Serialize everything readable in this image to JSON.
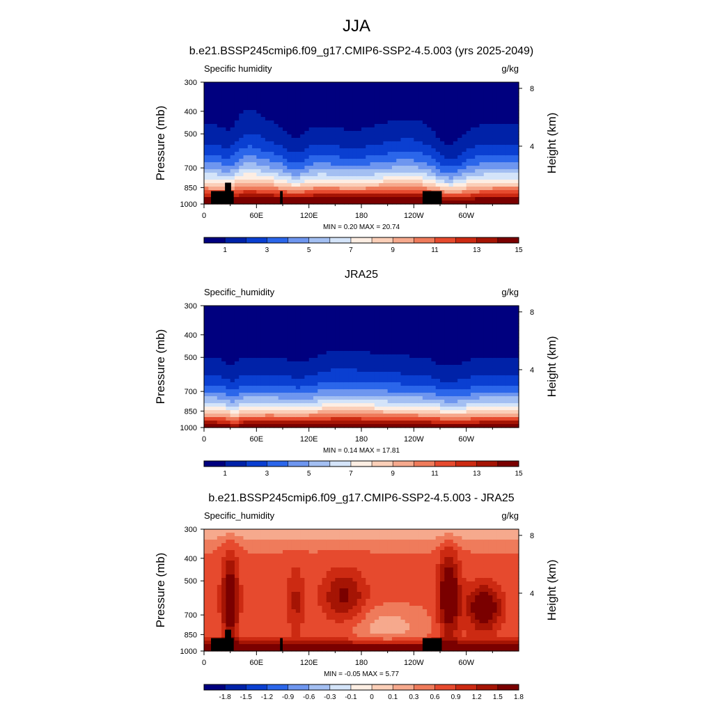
{
  "figure_title": "JJA",
  "colors": {
    "seq": [
      "#00007f",
      "#0022a8",
      "#0a3fd1",
      "#2b66ea",
      "#6e96ef",
      "#a3bff2",
      "#d4e4f9",
      "#fdeee3",
      "#fbcfb8",
      "#f6a98d",
      "#ef7b5b",
      "#e64a2e",
      "#cc2a12",
      "#a51404",
      "#7a0000"
    ],
    "diff": [
      "#00007f",
      "#0022a8",
      "#0a3fd1",
      "#2b66ea",
      "#6e96ef",
      "#a3bff2",
      "#d4e4f9",
      "#fdeee3",
      "#fbcfb8",
      "#f6a98d",
      "#ef7b5b",
      "#e64a2e",
      "#cc2a12",
      "#a51404",
      "#7a0000"
    ],
    "topography": "#000000"
  },
  "chart_data": [
    {
      "type": "heatmap",
      "title": "b.e21.BSSP245cmip6.f09_g17.CMIP6-SSP2-4.5.003 (yrs 2025-2049)",
      "left_label": "Specific humidity",
      "right_label": "g/kg",
      "ylabel": "Pressure (mb)",
      "y2label": "Height (km)",
      "x_ticks": [
        "0",
        "60E",
        "120E",
        "180",
        "120W",
        "60W"
      ],
      "x_tick_values": [
        0,
        60,
        120,
        180,
        240,
        300
      ],
      "xlim": [
        0,
        360
      ],
      "y_ticks": [
        "300",
        "400",
        "500",
        "700",
        "850",
        "1000"
      ],
      "y_tick_values": [
        300,
        400,
        500,
        700,
        850,
        1000
      ],
      "ylim": [
        300,
        1000
      ],
      "y2_ticks": [
        "8",
        "4"
      ],
      "y2_tick_values": [
        8,
        4
      ],
      "stats": "MIN =   0.20  MAX =  20.74",
      "colorbar_labels": [
        "1",
        "3",
        "5",
        "7",
        "9",
        "11",
        "13",
        "15"
      ],
      "colorbar_label_values": [
        1,
        3,
        5,
        7,
        9,
        11,
        13,
        15
      ],
      "levels": [
        0,
        1,
        2,
        3,
        4,
        5,
        6,
        7,
        8,
        9,
        10,
        11,
        12,
        13,
        14,
        15,
        16
      ],
      "field": "model",
      "topography": true
    },
    {
      "type": "heatmap",
      "title": "JRA25",
      "left_label": "Specific_humidity",
      "right_label": "g/kg",
      "ylabel": "Pressure (mb)",
      "y2label": "Height (km)",
      "x_ticks": [
        "0",
        "60E",
        "120E",
        "180",
        "120W",
        "60W"
      ],
      "x_tick_values": [
        0,
        60,
        120,
        180,
        240,
        300
      ],
      "xlim": [
        0,
        360
      ],
      "y_ticks": [
        "300",
        "400",
        "500",
        "700",
        "850",
        "1000"
      ],
      "y_tick_values": [
        300,
        400,
        500,
        700,
        850,
        1000
      ],
      "ylim": [
        300,
        1000
      ],
      "y2_ticks": [
        "8",
        "4"
      ],
      "y2_tick_values": [
        8,
        4
      ],
      "stats": "MIN =   0.14  MAX =  17.81",
      "colorbar_labels": [
        "1",
        "3",
        "5",
        "7",
        "9",
        "11",
        "13",
        "15"
      ],
      "colorbar_label_values": [
        1,
        3,
        5,
        7,
        9,
        11,
        13,
        15
      ],
      "levels": [
        0,
        1,
        2,
        3,
        4,
        5,
        6,
        7,
        8,
        9,
        10,
        11,
        12,
        13,
        14,
        15,
        16
      ],
      "field": "obs",
      "topography": false
    },
    {
      "type": "heatmap",
      "title": "b.e21.BSSP245cmip6.f09_g17.CMIP6-SSP2-4.5.003 - JRA25",
      "left_label": "Specific_humidity",
      "right_label": "g/kg",
      "ylabel": "Pressure (mb)",
      "y2label": "Height (km)",
      "x_ticks": [
        "0",
        "60E",
        "120E",
        "180",
        "120W",
        "60W"
      ],
      "x_tick_values": [
        0,
        60,
        120,
        180,
        240,
        300
      ],
      "xlim": [
        0,
        360
      ],
      "y_ticks": [
        "300",
        "400",
        "500",
        "700",
        "850",
        "1000"
      ],
      "y_tick_values": [
        300,
        400,
        500,
        700,
        850,
        1000
      ],
      "ylim": [
        300,
        1000
      ],
      "y2_ticks": [
        "8",
        "4"
      ],
      "y2_tick_values": [
        8,
        4
      ],
      "stats": "MIN =  -0.05  MAX =   5.77",
      "colorbar_labels": [
        "-1.8",
        "-1.5",
        "-1.2",
        "-0.9",
        "-0.6",
        "-0.3",
        "-0.1",
        "0",
        "0.1",
        "0.3",
        "0.6",
        "0.9",
        "1.2",
        "1.5",
        "1.8"
      ],
      "colorbar_label_values": [
        -1.8,
        -1.5,
        -1.2,
        -0.9,
        -0.6,
        -0.3,
        -0.1,
        0,
        0.1,
        0.3,
        0.6,
        0.9,
        1.2,
        1.5,
        1.8
      ],
      "field": "diff",
      "topography": true
    }
  ]
}
